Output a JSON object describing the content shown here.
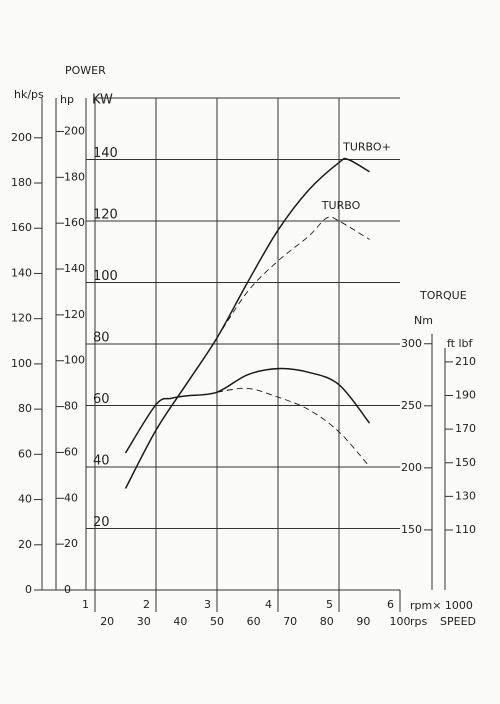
{
  "chart_data": {
    "type": "line",
    "title": "POWER",
    "ylabel": "KW",
    "ylim": [
      0,
      160
    ],
    "yticks": [
      20,
      40,
      60,
      80,
      100,
      120,
      140
    ],
    "xlabel": "rpm× 1000",
    "xlim": [
      1,
      6
    ],
    "xticks": [
      1,
      2,
      3,
      4,
      5,
      6
    ],
    "grid": true,
    "color": "#1a1a1a",
    "y_ps": {
      "label": "hk/ps",
      "lim": [
        0,
        217.6
      ],
      "ticks": [
        0,
        20,
        40,
        60,
        80,
        100,
        120,
        140,
        160,
        180,
        200
      ]
    },
    "y_hp": {
      "label": "hp",
      "lim": [
        0,
        214.6
      ],
      "ticks": [
        0,
        20,
        40,
        60,
        80,
        100,
        120,
        140,
        160,
        180,
        200
      ]
    },
    "y2": {
      "title": "TORQUE",
      "label": "Nm",
      "lim": [
        101.6,
        498
      ],
      "ticks": [
        150,
        200,
        250,
        300
      ]
    },
    "y3": {
      "label": "ft lbf",
      "lim": [
        74.3,
        367
      ],
      "ticks": [
        110,
        130,
        150,
        170,
        190,
        210
      ]
    },
    "x2": {
      "label": "rps",
      "title": "SPEED",
      "lim": [
        16.67,
        100
      ],
      "ticks": [
        20,
        30,
        40,
        50,
        60,
        70,
        80,
        90,
        100
      ]
    },
    "series": [
      {
        "name": "TURBO+",
        "dash": false,
        "x": [
          1.5,
          2,
          2.5,
          3,
          3.5,
          4,
          4.5,
          5,
          5.15,
          5.5
        ],
        "values": [
          33,
          52,
          67,
          82,
          100,
          117,
          130,
          139,
          140,
          136
        ]
      },
      {
        "name": "TURBO",
        "dash": true,
        "x": [
          3,
          3.5,
          4,
          4.5,
          4.8,
          5,
          5.5
        ],
        "values": [
          82,
          97,
          107,
          115,
          121,
          120,
          114
        ]
      },
      {
        "axis": "y2",
        "dash": false,
        "x": [
          1.5,
          2,
          2.25,
          2.5,
          3,
          3.5,
          4,
          4.5,
          5,
          5.5
        ],
        "values": [
          212,
          251,
          256,
          258,
          261,
          275,
          280,
          277,
          267,
          236
        ]
      },
      {
        "axis": "y2",
        "dash": true,
        "x": [
          3,
          3.5,
          4,
          4.5,
          5,
          5.5
        ],
        "values": [
          261,
          264,
          257,
          247,
          229,
          201
        ]
      }
    ]
  }
}
